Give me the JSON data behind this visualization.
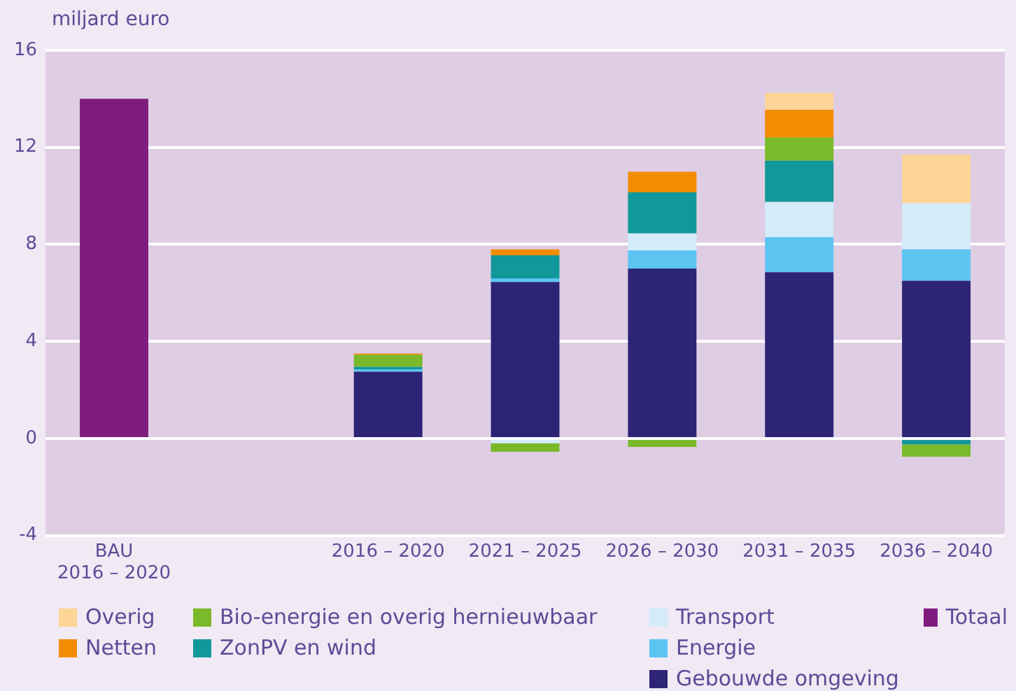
{
  "chart_data": {
    "type": "bar",
    "stacked": true,
    "ylabel": "miljard euro",
    "categories": [
      "BAU\n2016 – 2020",
      null,
      "2016 – 2020",
      "2021 – 2025",
      "2026 – 2030",
      "2031 – 2035",
      "2036 – 2040"
    ],
    "series": [
      {
        "name": "Gebouwde omgeving",
        "color": "#2d2476",
        "values": [
          null,
          null,
          2.75,
          6.45,
          7.0,
          6.85,
          6.5
        ]
      },
      {
        "name": "Energie",
        "color": "#5bc4f1",
        "values": [
          null,
          null,
          0.1,
          0.15,
          0.75,
          1.45,
          1.3
        ]
      },
      {
        "name": "Transport",
        "color": "#d4ebfa",
        "values": [
          null,
          null,
          null,
          -0.2,
          0.7,
          1.45,
          1.9
        ]
      },
      {
        "name": "ZonPV en wind",
        "color": "#12989a",
        "values": [
          null,
          null,
          0.1,
          0.95,
          1.7,
          1.7,
          -0.25
        ]
      },
      {
        "name": "Bio-energie en overig hernieuwbaar",
        "color": "#7ab929",
        "values": [
          null,
          null,
          0.5,
          -0.35,
          -0.35,
          0.95,
          -0.5
        ]
      },
      {
        "name": "Netten",
        "color": "#f28c00",
        "values": [
          null,
          null,
          0.05,
          0.25,
          0.85,
          1.15,
          null
        ]
      },
      {
        "name": "Overig",
        "color": "#fdd597",
        "values": [
          null,
          null,
          null,
          null,
          null,
          0.7,
          2.0
        ]
      },
      {
        "name": "Totaal",
        "color": "#7f1d7f",
        "values": [
          14,
          null,
          null,
          null,
          null,
          null,
          null
        ]
      }
    ],
    "ylim": [
      -4,
      16
    ],
    "yticks": [
      -4,
      0,
      4,
      8,
      12,
      16
    ],
    "grid": "y",
    "legend": "bottom"
  }
}
